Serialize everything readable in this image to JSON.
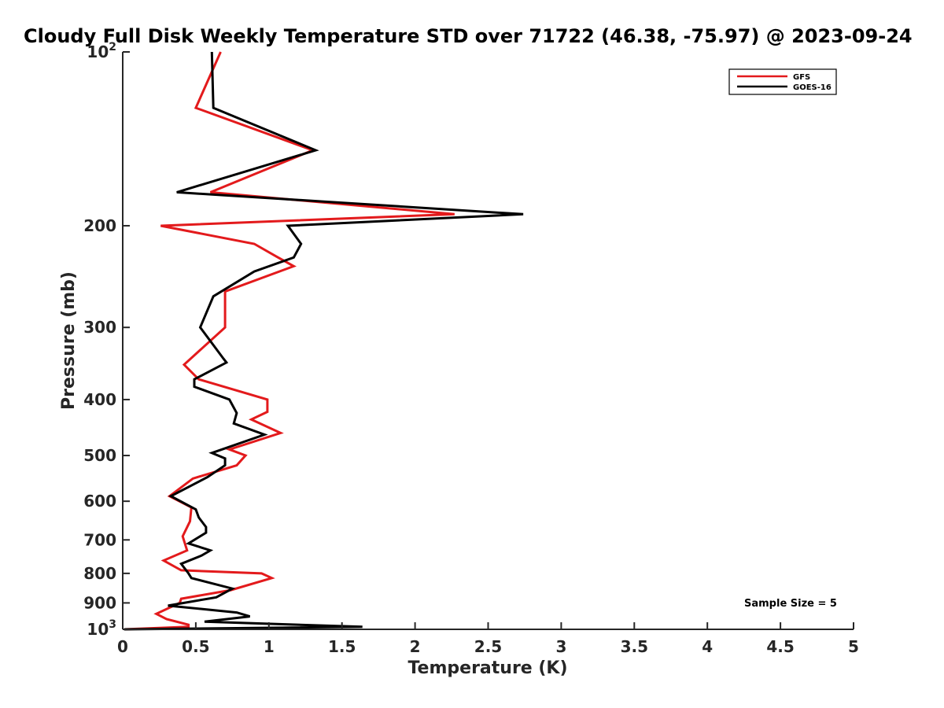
{
  "chart_data": {
    "type": "line",
    "title": "Cloudy Full Disk Weekly Temperature STD over 71722 (46.38, -75.97) @ 2023-09-24",
    "xlabel": "Temperature (K)",
    "ylabel": "Pressure (mb)",
    "xlim": [
      0,
      5
    ],
    "ylim": [
      1000,
      100
    ],
    "yscale": "log",
    "y_reversed": true,
    "grid": false,
    "legend_position": "top-right",
    "x_ticks": [
      0,
      0.5,
      1,
      1.5,
      2,
      2.5,
      3,
      3.5,
      4,
      4.5,
      5
    ],
    "x_tick_labels": [
      "0",
      "0.5",
      "1",
      "1.5",
      "2",
      "2.5",
      "3",
      "3.5",
      "4",
      "4.5",
      "5"
    ],
    "y_ticks": [
      {
        "value": 100,
        "base": "10",
        "exp": "2",
        "label": ""
      },
      {
        "value": 200,
        "label": "200"
      },
      {
        "value": 300,
        "label": "300"
      },
      {
        "value": 400,
        "label": "400"
      },
      {
        "value": 500,
        "label": "500"
      },
      {
        "value": 600,
        "label": "600"
      },
      {
        "value": 700,
        "label": "700"
      },
      {
        "value": 800,
        "label": "800"
      },
      {
        "value": 900,
        "label": "900"
      },
      {
        "value": 1000,
        "base": "10",
        "exp": "3",
        "label": ""
      }
    ],
    "annotation": "Sample Size = 5",
    "series": [
      {
        "name": "GFS",
        "color": "#e31a1c",
        "points": [
          [
            0.67,
            100
          ],
          [
            0.5,
            125
          ],
          [
            1.3,
            148
          ],
          [
            0.6,
            175
          ],
          [
            2.27,
            191
          ],
          [
            0.26,
            200
          ],
          [
            0.9,
            215
          ],
          [
            1.05,
            226
          ],
          [
            1.17,
            235
          ],
          [
            0.7,
            260
          ],
          [
            0.7,
            300
          ],
          [
            0.42,
            348
          ],
          [
            0.52,
            369
          ],
          [
            0.99,
            400
          ],
          [
            0.99,
            420
          ],
          [
            0.88,
            433
          ],
          [
            1.08,
            457
          ],
          [
            0.73,
            488
          ],
          [
            0.84,
            500
          ],
          [
            0.78,
            520
          ],
          [
            0.48,
            548
          ],
          [
            0.32,
            588
          ],
          [
            0.47,
            615
          ],
          [
            0.46,
            650
          ],
          [
            0.41,
            690
          ],
          [
            0.44,
            730
          ],
          [
            0.28,
            760
          ],
          [
            0.4,
            790
          ],
          [
            0.95,
            800
          ],
          [
            1.02,
            815
          ],
          [
            0.74,
            855
          ],
          [
            0.4,
            885
          ],
          [
            0.39,
            900
          ],
          [
            0.23,
            940
          ],
          [
            0.3,
            960
          ],
          [
            0.45,
            982
          ],
          [
            0.45,
            990
          ],
          [
            0.01,
            1000
          ]
        ]
      },
      {
        "name": "GOES-16",
        "color": "#000000",
        "points": [
          [
            0.61,
            100
          ],
          [
            0.62,
            125
          ],
          [
            1.32,
            148
          ],
          [
            0.37,
            175
          ],
          [
            2.74,
            191
          ],
          [
            1.13,
            200
          ],
          [
            1.22,
            215
          ],
          [
            1.17,
            227
          ],
          [
            0.9,
            240
          ],
          [
            0.62,
            265
          ],
          [
            0.53,
            300
          ],
          [
            0.69,
            340
          ],
          [
            0.71,
            345
          ],
          [
            0.49,
            369
          ],
          [
            0.49,
            380
          ],
          [
            0.73,
            400
          ],
          [
            0.78,
            422
          ],
          [
            0.76,
            440
          ],
          [
            0.97,
            460
          ],
          [
            0.61,
            495
          ],
          [
            0.7,
            506
          ],
          [
            0.7,
            520
          ],
          [
            0.58,
            545
          ],
          [
            0.33,
            588
          ],
          [
            0.5,
            620
          ],
          [
            0.52,
            640
          ],
          [
            0.57,
            665
          ],
          [
            0.57,
            680
          ],
          [
            0.45,
            710
          ],
          [
            0.6,
            730
          ],
          [
            0.54,
            745
          ],
          [
            0.4,
            770
          ],
          [
            0.45,
            800
          ],
          [
            0.47,
            815
          ],
          [
            0.75,
            850
          ],
          [
            0.64,
            880
          ],
          [
            0.31,
            910
          ],
          [
            0.78,
            935
          ],
          [
            0.87,
            950
          ],
          [
            0.56,
            970
          ],
          [
            1.64,
            990
          ],
          [
            0.01,
            1000
          ]
        ]
      }
    ]
  }
}
